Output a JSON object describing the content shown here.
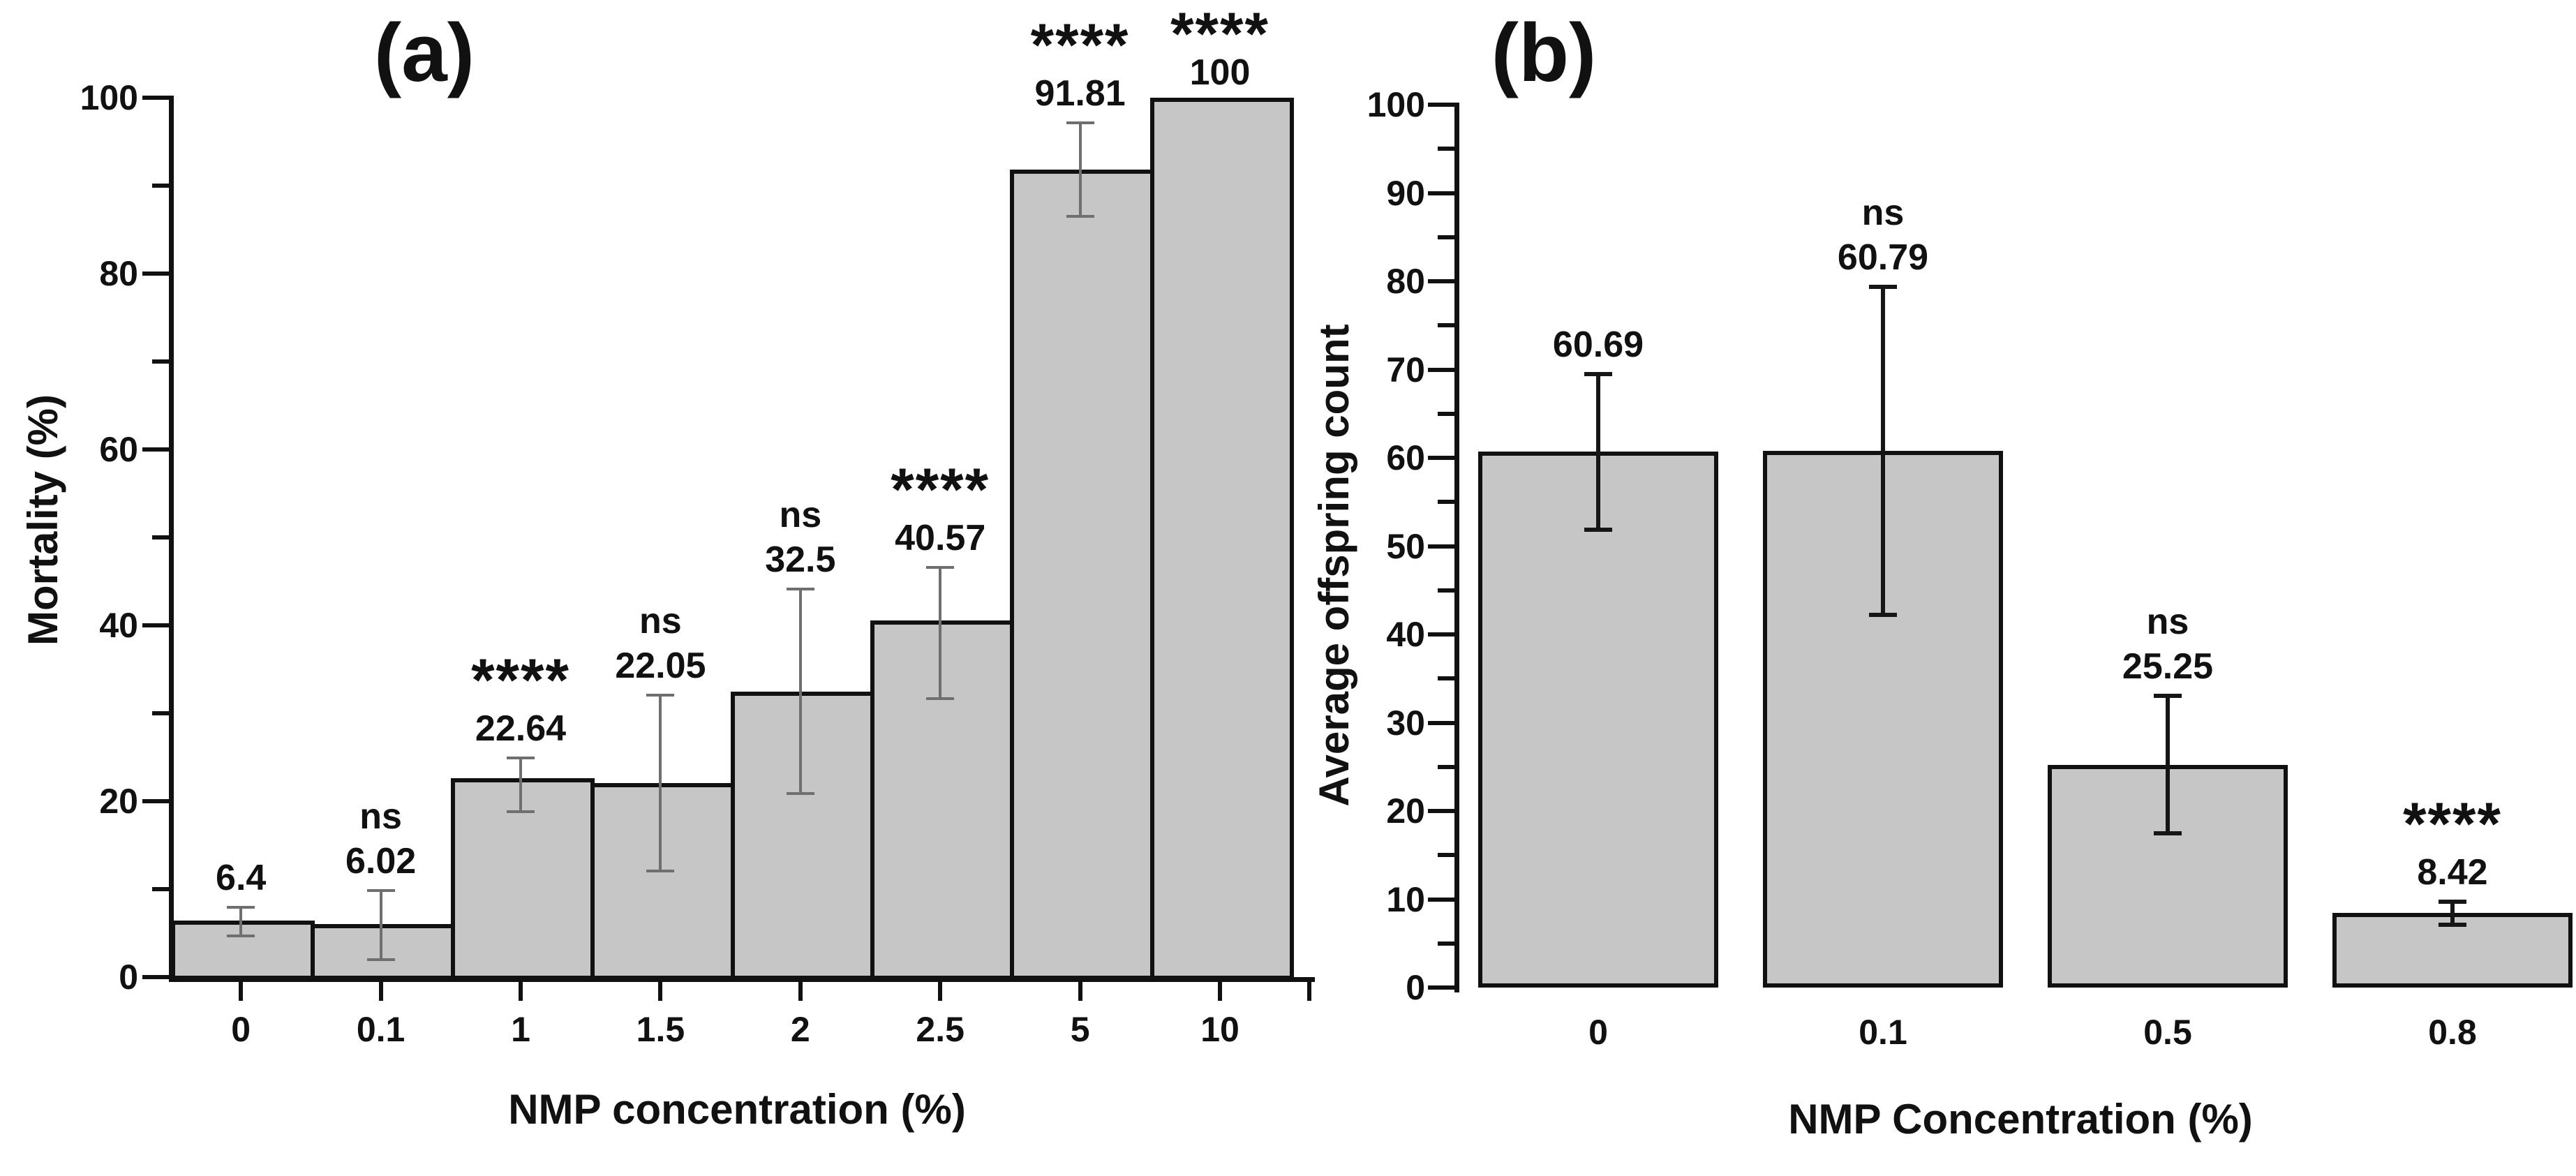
{
  "figure": {
    "background": "#ffffff",
    "text_color": "#111111"
  },
  "colors": {
    "bar_fill": "#c6c6c6",
    "bar_edge": "#111111",
    "axis": "#111111",
    "error_bar_panel_a": "#6f6f6f",
    "error_bar_panel_b": "#161616"
  },
  "chart_data": [
    {
      "type": "bar",
      "panel_label": "(a)",
      "title": "",
      "xlabel": "NMP concentration (%)",
      "ylabel": "Mortality (%)",
      "ylim": [
        0,
        100
      ],
      "y_major_tick_step": 20,
      "y_minor_tick_step": 10,
      "y_tick_labels": [
        "0",
        "20",
        "40",
        "60",
        "80",
        "100"
      ],
      "grid": "off",
      "legend": "none",
      "bar_layout": "adjacent",
      "categories": [
        "0",
        "0.1",
        "1",
        "1.5",
        "2",
        "2.5",
        "5",
        "10"
      ],
      "values": [
        6.4,
        6.02,
        22.64,
        22.05,
        32.5,
        40.57,
        91.81,
        100
      ],
      "value_labels": [
        "6.4",
        "6.02",
        "22.64",
        "22.05",
        "32.5",
        "40.57",
        "91.81",
        "100"
      ],
      "significance": [
        "",
        "ns",
        "****",
        "ns",
        "ns",
        "****",
        "****",
        "****"
      ],
      "error_plus": [
        1.5,
        3.8,
        2.3,
        10.0,
        11.6,
        6.0,
        5.3,
        0
      ],
      "error_minus": [
        1.7,
        4.0,
        3.8,
        10.0,
        11.6,
        8.9,
        5.3,
        0
      ]
    },
    {
      "type": "bar",
      "panel_label": "(b)",
      "title": "",
      "xlabel": "NMP Concentration (%)",
      "ylabel": "Average offspring count",
      "ylim": [
        0,
        100
      ],
      "y_major_tick_step": 10,
      "y_minor_tick_step": 5,
      "y_tick_labels": [
        "0",
        "10",
        "20",
        "30",
        "40",
        "50",
        "60",
        "70",
        "80",
        "90",
        "100"
      ],
      "grid": "off",
      "legend": "none",
      "bar_layout": "spaced",
      "categories": [
        "0",
        "0.1",
        "0.5",
        "0.8"
      ],
      "values": [
        60.69,
        60.79,
        25.25,
        8.42
      ],
      "value_labels": [
        "60.69",
        "60.79",
        "25.25",
        "8.42"
      ],
      "significance": [
        "",
        "ns",
        "ns",
        "****"
      ],
      "error_plus": [
        8.8,
        18.6,
        7.8,
        1.3
      ],
      "error_minus": [
        8.8,
        18.6,
        7.8,
        1.3
      ]
    }
  ]
}
